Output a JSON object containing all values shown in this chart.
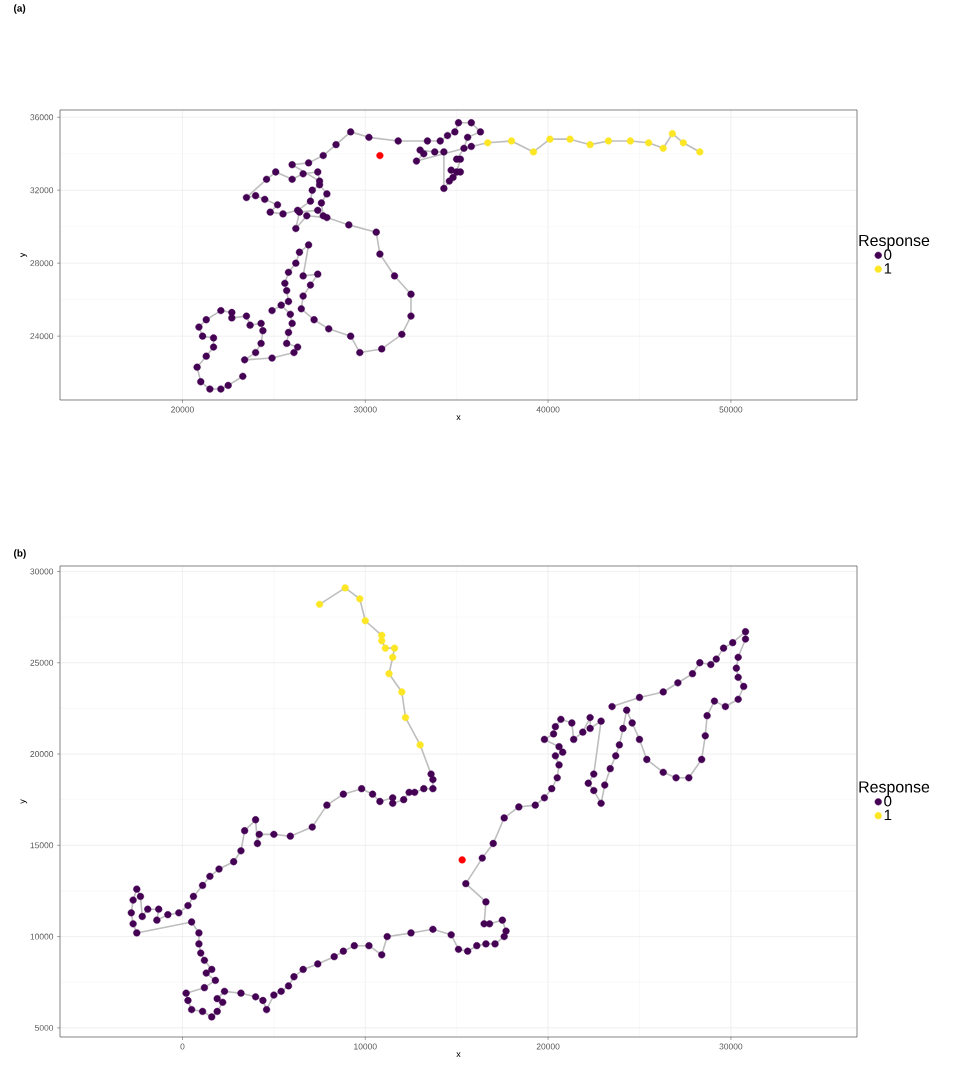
{
  "chart_data": [
    {
      "type": "scatter",
      "title": "(a)",
      "xlabel": "x",
      "ylabel": "y",
      "legend_title": "Response",
      "legend": "right",
      "grid": true,
      "xlim": [
        13300,
        56900
      ],
      "ylim": [
        20500,
        36400
      ],
      "xticks": [
        20000,
        30000,
        40000,
        50000
      ],
      "yticks": [
        24000,
        28000,
        32000,
        36000
      ],
      "series": [
        {
          "type": "line",
          "color": "#bebebe",
          "marker": "none",
          "x": [
            23300,
            22500,
            22100,
            21500,
            21000,
            20800,
            21300,
            21700,
            21700,
            21100,
            20900,
            21300,
            22100,
            22700,
            22700,
            23500,
            23700,
            24300,
            24400,
            24300,
            24000,
            23400,
            24900,
            26100,
            26300,
            25700,
            25800,
            26000,
            25900,
            25400,
            24900,
            25800,
            25700,
            25600,
            25800,
            26200,
            26400,
            26900,
            26600,
            27400,
            27000,
            26600,
            26500,
            27200,
            28000,
            29200,
            29700,
            30900,
            32000,
            32500,
            32500,
            31600,
            30800,
            30600,
            29100,
            27900,
            26800,
            26200,
            26400,
            27400,
            27700,
            27600,
            27900,
            27500,
            27100,
            27000,
            26300,
            25500,
            24800,
            25200,
            24500,
            24000,
            23500,
            24600,
            25100,
            26000,
            26600,
            27400,
            27500,
            26000,
            26900,
            27700,
            28400,
            29200,
            30200,
            31800,
            33400,
            34100,
            34500,
            34900,
            35100,
            35800,
            36300,
            35600,
            35400,
            35000,
            35200,
            35000,
            34700,
            35200,
            34800,
            34600,
            34300,
            34300,
            33800,
            33000,
            33200,
            32800,
            35800,
            36700,
            38000,
            39200,
            40100,
            41200,
            42300,
            43300,
            44500,
            45500,
            46300,
            46800,
            47400,
            48300
          ],
          "values": [
            21800,
            21300,
            21100,
            21100,
            21500,
            22300,
            22900,
            23400,
            23900,
            24000,
            24500,
            24900,
            25400,
            25300,
            25000,
            25100,
            24600,
            24700,
            24300,
            23600,
            23100,
            22700,
            22800,
            23100,
            23400,
            23600,
            24200,
            24700,
            25200,
            25700,
            25400,
            25900,
            26500,
            26900,
            27500,
            28000,
            28600,
            29000,
            27300,
            27400,
            26800,
            26200,
            25500,
            24900,
            24400,
            24000,
            23100,
            23300,
            24100,
            25100,
            26300,
            27300,
            28500,
            29700,
            30100,
            30500,
            30600,
            29900,
            30800,
            30900,
            30600,
            31300,
            31800,
            32300,
            32000,
            31400,
            30900,
            30700,
            30800,
            31200,
            31500,
            31700,
            31600,
            32600,
            33000,
            32600,
            32900,
            33000,
            32500,
            33400,
            33500,
            33900,
            34500,
            35200,
            34900,
            34700,
            34700,
            34700,
            35000,
            35200,
            35700,
            35700,
            35200,
            34900,
            34300,
            33700,
            33700,
            33000,
            33100,
            33000,
            32700,
            32500,
            32100,
            34100,
            34100,
            34200,
            34000,
            33600,
            34400,
            34600,
            34700,
            34100,
            34800,
            34800,
            34500,
            34700,
            34700,
            34600,
            34300,
            35100,
            34600,
            34100
          ]
        },
        {
          "name": "0",
          "color": "#440154",
          "marker": "circle",
          "x": [
            23300,
            22500,
            22100,
            21500,
            21000,
            20800,
            21300,
            21700,
            21700,
            21100,
            20900,
            21300,
            22100,
            22700,
            22700,
            23500,
            23700,
            24300,
            24400,
            24300,
            24000,
            23400,
            24900,
            26100,
            26300,
            25700,
            25800,
            26000,
            25900,
            25400,
            24900,
            25800,
            25700,
            25600,
            25800,
            26200,
            26400,
            26900,
            26600,
            27400,
            27000,
            26600,
            26500,
            27200,
            28000,
            29200,
            29700,
            30900,
            32000,
            32500,
            32500,
            31600,
            30800,
            30600,
            29100,
            27900,
            26800,
            26200,
            26400,
            27400,
            27700,
            27600,
            27900,
            27500,
            27100,
            27000,
            26300,
            25500,
            24800,
            25200,
            24500,
            24000,
            23500,
            24600,
            25100,
            26000,
            26600,
            27400,
            27500,
            26000,
            26900,
            27700,
            28400,
            29200,
            30200,
            31800,
            33400,
            34100,
            34500,
            34900,
            35100,
            35800,
            36300,
            35600,
            35400,
            35000,
            35200,
            35000,
            34700,
            35200,
            34800,
            34600,
            34300,
            34300,
            33800,
            33000,
            33200,
            32800,
            35800
          ],
          "values": [
            21800,
            21300,
            21100,
            21100,
            21500,
            22300,
            22900,
            23400,
            23900,
            24000,
            24500,
            24900,
            25400,
            25300,
            25000,
            25100,
            24600,
            24700,
            24300,
            23600,
            23100,
            22700,
            22800,
            23100,
            23400,
            23600,
            24200,
            24700,
            25200,
            25700,
            25400,
            25900,
            26500,
            26900,
            27500,
            28000,
            28600,
            29000,
            27300,
            27400,
            26800,
            26200,
            25500,
            24900,
            24400,
            24000,
            23100,
            23300,
            24100,
            25100,
            26300,
            27300,
            28500,
            29700,
            30100,
            30500,
            30600,
            29900,
            30800,
            30900,
            30600,
            31300,
            31800,
            32300,
            32000,
            31400,
            30900,
            30700,
            30800,
            31200,
            31500,
            31700,
            31600,
            32600,
            33000,
            32600,
            32900,
            33000,
            32500,
            33400,
            33500,
            33900,
            34500,
            35200,
            34900,
            34700,
            34700,
            34700,
            35000,
            35200,
            35700,
            35700,
            35200,
            34900,
            34300,
            33700,
            33700,
            33000,
            33100,
            33000,
            32700,
            32500,
            32100,
            34100,
            34100,
            34200,
            34000,
            33600,
            34400
          ]
        },
        {
          "name": "1",
          "color": "#fde725",
          "marker": "circle",
          "x": [
            36700,
            38000,
            39200,
            40100,
            41200,
            42300,
            43300,
            44500,
            45500,
            46300,
            46800,
            47400,
            48300
          ],
          "values": [
            34600,
            34700,
            34100,
            34800,
            34800,
            34500,
            34700,
            34700,
            34600,
            34300,
            35100,
            34600,
            34100
          ]
        },
        {
          "color": "#ff0000",
          "marker": "circle",
          "x": [
            30800
          ],
          "values": [
            33900
          ]
        }
      ]
    },
    {
      "type": "scatter",
      "title": "(b)",
      "xlabel": "x",
      "ylabel": "y",
      "legend_title": "Response",
      "legend": "right",
      "grid": true,
      "xlim": [
        -6700,
        36900
      ],
      "ylim": [
        4500,
        30300
      ],
      "xticks": [
        0,
        10000,
        20000,
        30000
      ],
      "yticks": [
        5000,
        10000,
        15000,
        20000,
        25000,
        30000
      ],
      "series": [
        {
          "type": "line",
          "color": "#bebebe",
          "marker": "none",
          "x": [
            7500,
            8900,
            9700,
            10000,
            10900,
            10900,
            11100,
            11600,
            11500,
            11300,
            12000,
            12200,
            13000,
            13600,
            13700,
            13700,
            13200,
            12700,
            12400,
            12100,
            11500,
            11500,
            10800,
            10400,
            9800,
            8800,
            7900,
            7100,
            5900,
            5000,
            4200,
            4100,
            4000,
            3400,
            3200,
            2800,
            2000,
            1500,
            1100,
            600,
            300,
            -200,
            -800,
            -1400,
            -1300,
            -1900,
            -2200,
            -2300,
            -2500,
            -2700,
            -2800,
            -2700,
            -2500,
            500,
            900,
            900,
            1000,
            1200,
            1600,
            1300,
            1800,
            1200,
            200,
            300,
            500,
            1100,
            1600,
            1900,
            2200,
            1900,
            2300,
            3200,
            4000,
            4400,
            4600,
            5000,
            5400,
            5800,
            6100,
            6600,
            7400,
            8300,
            8800,
            9400,
            10200,
            10900,
            11200,
            12500,
            13700,
            14700,
            15100,
            15600,
            16100,
            16600,
            17100,
            17600,
            17700,
            17500,
            16800,
            16500,
            16600,
            15500,
            16400,
            17000,
            17600,
            18400,
            19300,
            19800,
            20200,
            20500,
            20600,
            20400,
            20800,
            20600,
            19800,
            20300,
            20400,
            20700,
            21300,
            21400,
            21900,
            22300,
            22300,
            22900,
            22500,
            22200,
            22500,
            22900,
            23100,
            23400,
            23700,
            23900,
            24100,
            24300,
            24600,
            25000,
            25400,
            26300,
            27000,
            27700,
            28400,
            28600,
            28700,
            29100,
            29700,
            30400,
            30700,
            30400,
            30300,
            30400,
            30800,
            30800,
            30100,
            29600,
            29200,
            28900,
            28300,
            27900,
            27100,
            26300,
            25000,
            23500
          ],
          "values": [
            28200,
            29100,
            28500,
            27300,
            26500,
            26200,
            25800,
            25800,
            25300,
            24400,
            23400,
            22000,
            20500,
            18900,
            18600,
            18100,
            18100,
            17900,
            17900,
            17500,
            17300,
            17600,
            17400,
            17800,
            18100,
            17800,
            17200,
            16000,
            15500,
            15600,
            15600,
            15100,
            16400,
            15800,
            14700,
            14100,
            13700,
            13300,
            12800,
            12200,
            11700,
            11300,
            11200,
            10900,
            11500,
            11500,
            11100,
            12200,
            12600,
            12000,
            11300,
            10700,
            10200,
            10800,
            10200,
            9600,
            9100,
            8700,
            8200,
            8000,
            7600,
            7200,
            6900,
            6500,
            6000,
            5900,
            5600,
            5900,
            6400,
            6600,
            7000,
            6900,
            6700,
            6500,
            6000,
            6800,
            7000,
            7300,
            7800,
            8200,
            8500,
            8900,
            9200,
            9500,
            9500,
            9000,
            10000,
            10200,
            10400,
            10100,
            9300,
            9200,
            9500,
            9600,
            9600,
            10000,
            10300,
            10900,
            10700,
            10700,
            11900,
            12900,
            14300,
            15100,
            16500,
            17100,
            17200,
            17600,
            18100,
            18700,
            19400,
            19900,
            20100,
            20400,
            20800,
            21100,
            21500,
            21900,
            21700,
            20800,
            21200,
            22000,
            21400,
            21800,
            18900,
            18400,
            18000,
            17300,
            18300,
            19200,
            19900,
            20500,
            21400,
            22400,
            21700,
            20800,
            19700,
            19000,
            18700,
            18700,
            19700,
            21000,
            22100,
            22900,
            22600,
            23000,
            23700,
            24200,
            24700,
            25300,
            26300,
            26700,
            26100,
            25800,
            25200,
            24900,
            25000,
            24400,
            23900,
            23400,
            23100,
            22600
          ]
        },
        {
          "name": "0",
          "color": "#440154",
          "marker": "circle",
          "x": [
            13600,
            13700,
            13700,
            13200,
            12700,
            12400,
            12100,
            11500,
            11500,
            10800,
            10400,
            9800,
            8800,
            7900,
            7100,
            5900,
            5000,
            4200,
            4100,
            4000,
            3400,
            3200,
            2800,
            2000,
            1500,
            1100,
            600,
            300,
            -200,
            -800,
            -1400,
            -1300,
            -1900,
            -2200,
            -2300,
            -2500,
            -2700,
            -2800,
            -2700,
            -2500,
            500,
            900,
            900,
            1000,
            1200,
            1600,
            1300,
            1800,
            1200,
            200,
            300,
            500,
            1100,
            1600,
            1900,
            2200,
            1900,
            2300,
            3200,
            4000,
            4400,
            4600,
            5000,
            5400,
            5800,
            6100,
            6600,
            7400,
            8300,
            8800,
            9400,
            10200,
            10900,
            11200,
            12500,
            13700,
            14700,
            15100,
            15600,
            16100,
            16600,
            17100,
            17600,
            17700,
            17500,
            16800,
            16500,
            16600,
            15500,
            16400,
            17000,
            17600,
            18400,
            19300,
            19800,
            20200,
            20500,
            20600,
            20400,
            20800,
            20600,
            19800,
            20300,
            20400,
            20700,
            21300,
            21400,
            21900,
            22300,
            22300,
            22900,
            22500,
            22200,
            22500,
            22900,
            23100,
            23400,
            23700,
            23900,
            24100,
            24300,
            24600,
            25000,
            25400,
            26300,
            27000,
            27700,
            28400,
            28600,
            28700,
            29100,
            29700,
            30400,
            30700,
            30400,
            30300,
            30400,
            30800,
            30800,
            30100,
            29600,
            29200,
            28900,
            28300,
            27900,
            27100,
            26300,
            25000,
            23500
          ],
          "values": [
            18900,
            18600,
            18100,
            18100,
            17900,
            17900,
            17500,
            17300,
            17600,
            17400,
            17800,
            18100,
            17800,
            17200,
            16000,
            15500,
            15600,
            15600,
            15100,
            16400,
            15800,
            14700,
            14100,
            13700,
            13300,
            12800,
            12200,
            11700,
            11300,
            11200,
            10900,
            11500,
            11500,
            11100,
            12200,
            12600,
            12000,
            11300,
            10700,
            10200,
            10800,
            10200,
            9600,
            9100,
            8700,
            8200,
            8000,
            7600,
            7200,
            6900,
            6500,
            6000,
            5900,
            5600,
            5900,
            6400,
            6600,
            7000,
            6900,
            6700,
            6500,
            6000,
            6800,
            7000,
            7300,
            7800,
            8200,
            8500,
            8900,
            9200,
            9500,
            9500,
            9000,
            10000,
            10200,
            10400,
            10100,
            9300,
            9200,
            9500,
            9600,
            9600,
            10000,
            10300,
            10900,
            10700,
            10700,
            11900,
            12900,
            14300,
            15100,
            16500,
            17100,
            17200,
            17600,
            18100,
            18700,
            19400,
            19900,
            20100,
            20400,
            20800,
            21100,
            21500,
            21900,
            21700,
            20800,
            21200,
            22000,
            21400,
            21800,
            18900,
            18400,
            18000,
            17300,
            18300,
            19200,
            19900,
            20500,
            21400,
            22400,
            21700,
            20800,
            19700,
            19000,
            18700,
            18700,
            19700,
            21000,
            22100,
            22900,
            22600,
            23000,
            23700,
            24200,
            24700,
            25300,
            26300,
            26700,
            26100,
            25800,
            25200,
            24900,
            25000,
            24400,
            23900,
            23400,
            23100,
            22600
          ]
        },
        {
          "name": "1",
          "color": "#fde725",
          "marker": "circle",
          "x": [
            7500,
            8900,
            9700,
            10000,
            10900,
            10900,
            11100,
            11600,
            11500,
            11300,
            12000,
            12200,
            13000
          ],
          "values": [
            28200,
            29100,
            28500,
            27300,
            26500,
            26200,
            25800,
            25800,
            25300,
            24400,
            23400,
            22000,
            20500
          ]
        },
        {
          "color": "#ff0000",
          "marker": "circle",
          "x": [
            15300
          ],
          "values": [
            14200
          ]
        }
      ]
    }
  ]
}
